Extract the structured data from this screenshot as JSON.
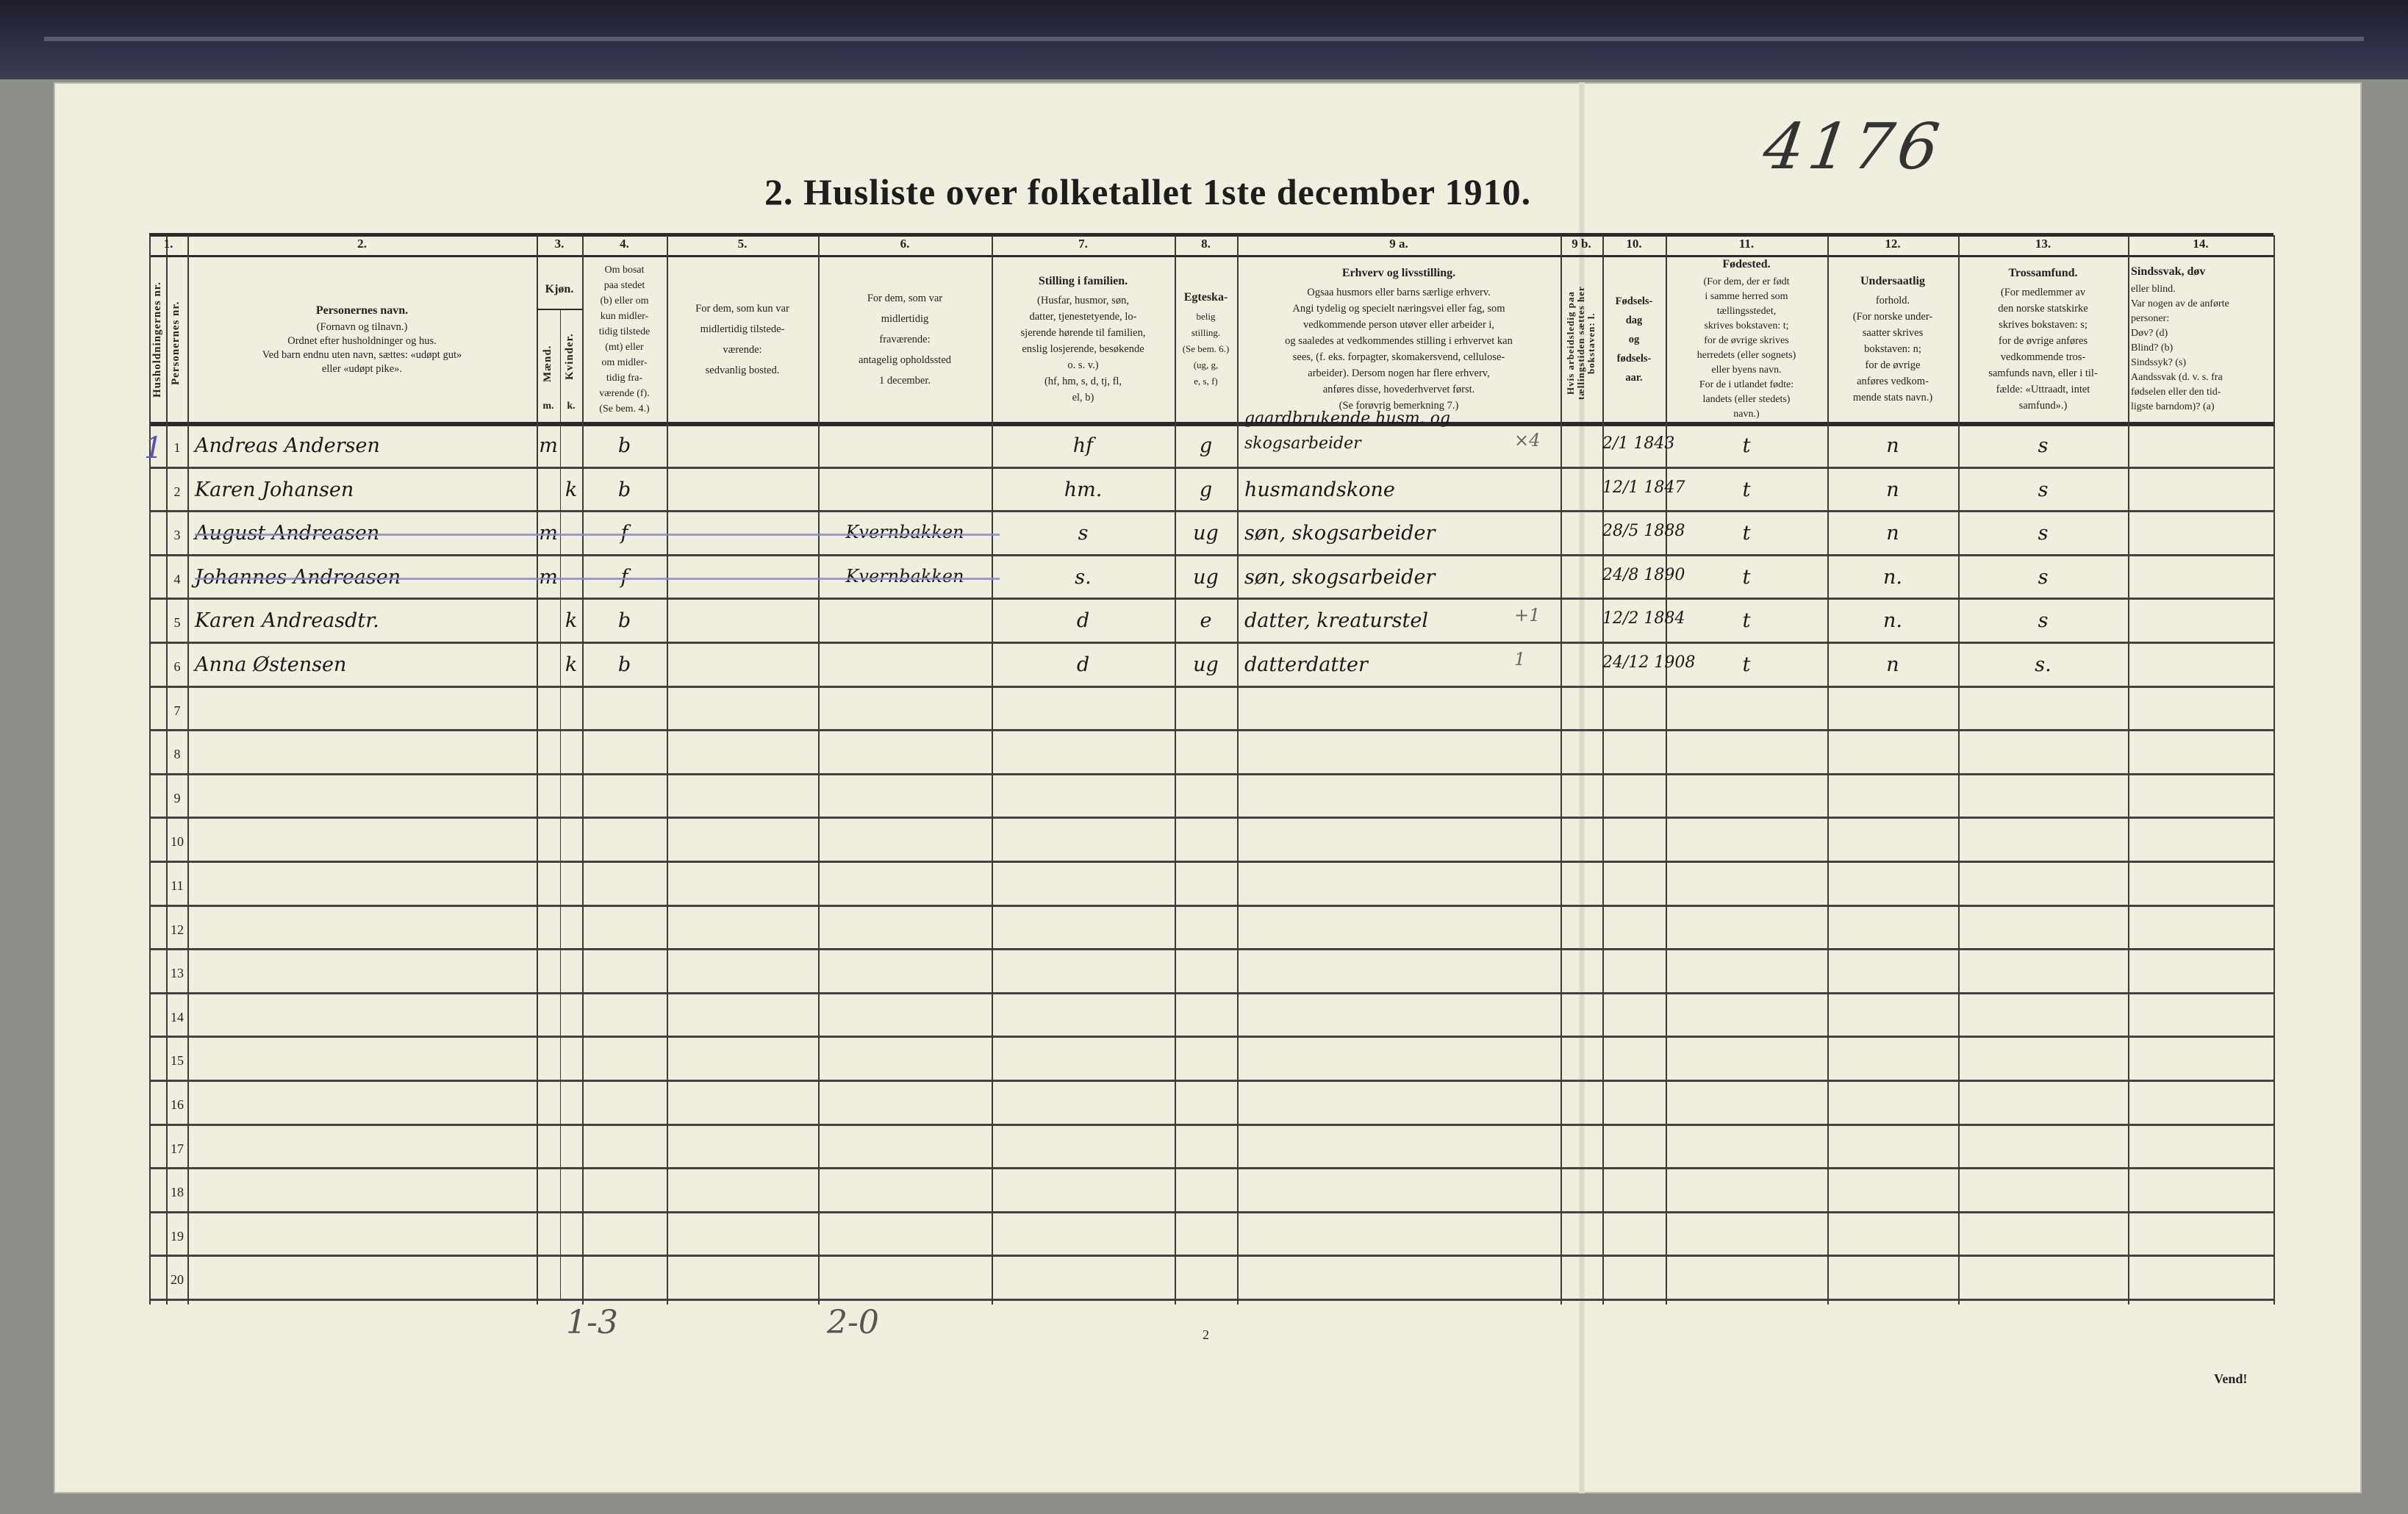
{
  "archive_number": "4176",
  "title": "2.  Husliste over folketallet 1ste december 1910.",
  "header_numbers": [
    "1.",
    "2.",
    "3.",
    "4.",
    "5.",
    "6.",
    "7.",
    "8.",
    "9 a.",
    "9 b.",
    "10.",
    "11.",
    "12.",
    "13.",
    "14."
  ],
  "header": {
    "household_nr": "Husholdningernes nr.",
    "person_nr": "Personernes nr.",
    "name": {
      "title": "Personernes navn.",
      "lines": [
        "(Fornavn og tilnavn.)",
        "Ordnet efter husholdninger og hus.",
        "Ved barn endnu uten navn, sættes: «udøpt gut»",
        "eller «udøpt pike»."
      ]
    },
    "sex": {
      "title": "Kjøn.",
      "male": "Mænd.",
      "female": "Kvinder.",
      "m": "m.",
      "k": "k."
    },
    "residence": {
      "lines": [
        "Om bosat",
        "paa stedet",
        "(b) eller om",
        "kun midler-",
        "tidig tilstede",
        "(mt) eller",
        "om midler-",
        "tidig fra-",
        "værende (f).",
        "(Se bem. 4.)"
      ]
    },
    "temp_present": {
      "lines": [
        "For dem, som kun var",
        "midlertidig tilstede-",
        "værende:",
        "sedvanlig bosted."
      ]
    },
    "temp_absent": {
      "lines": [
        "For dem, som var",
        "midlertidig",
        "fraværende:",
        "antagelig opholdssted",
        "1 december."
      ]
    },
    "family_position": {
      "title": "Stilling i familien.",
      "lines": [
        "(Husfar, husmor, søn,",
        "datter, tjenestetyende, lo-",
        "sjerende hørende til familien,",
        "enslig losjerende, besøkende",
        "o. s. v.)",
        "(hf, hm, s, d, tj, fl,",
        "el, b)"
      ]
    },
    "marital": {
      "title": "Egteska-",
      "lines": [
        "belig",
        "stilling.",
        "(Se bem. 6.)",
        "(ug, g,",
        "e, s, f)"
      ]
    },
    "occupation": {
      "title": "Erhverv og livsstilling.",
      "lines": [
        "Ogsaa husmors eller barns særlige erhverv.",
        "Angi tydelig og specielt næringsvei eller fag, som",
        "vedkommende person utøver eller arbeider i,",
        "og saaledes at vedkommendes stilling i erhvervet kan",
        "sees, (f. eks. forpagter, skomakersvend, cellulose-",
        "arbeider). Dersom nogen har flere erhverv,",
        "anføres disse, hovederhvervet først.",
        "(Se forøvrig bemerkning 7.)"
      ]
    },
    "unemployed": "Hvis arbeidsledig paa tællingstiden sættes her bokstaven: l.",
    "birth_date": {
      "lines": [
        "Fødsels-",
        "dag",
        "og",
        "fødsels-",
        "aar."
      ]
    },
    "birthplace": {
      "title": "Fødested.",
      "lines": [
        "(For dem, der er født",
        "i samme herred som",
        "tællingsstedet,",
        "skrives bokstaven: t;",
        "for de øvrige skrives",
        "herredets (eller sognets)",
        "eller byens navn.",
        "For de i utlandet fødte:",
        "landets (eller stedets)",
        "navn.)"
      ]
    },
    "citizenship": {
      "title": "Undersaatlig",
      "lines": [
        "forhold.",
        "(For norske under-",
        "saatter skrives",
        "bokstaven: n;",
        "for de øvrige",
        "anføres vedkom-",
        "mende stats navn.)"
      ]
    },
    "religion": {
      "title": "Trossamfund.",
      "lines": [
        "(For medlemmer av",
        "den norske statskirke",
        "skrives bokstaven: s;",
        "for de øvrige anføres",
        "vedkommende tros-",
        "samfunds navn, eller i til-",
        "fælde: «Uttraadt, intet",
        "samfund».)"
      ]
    },
    "disability": {
      "title": "Sindssvak, døv",
      "lines": [
        "eller blind.",
        "Var nogen av de anførte",
        "personer:",
        "Døv?  (d)",
        "Blind?  (b)",
        "Sindssyk?  (s)",
        "Aandssvak (d. v. s. fra",
        "fødselen eller den tid-",
        "ligste barndom)? (a)"
      ]
    }
  },
  "row_numbers": [
    "1",
    "2",
    "3",
    "4",
    "5",
    "6",
    "7",
    "8",
    "9",
    "10",
    "11",
    "12",
    "13",
    "14",
    "15",
    "16",
    "17",
    "18",
    "19",
    "20"
  ],
  "household_marks": [
    "1"
  ],
  "rows": [
    {
      "name": "Andreas Andersen",
      "sex_m": "m",
      "sex_k": "",
      "residence": "b",
      "temp_present": "",
      "temp_absent": "",
      "family": "hf",
      "marital": "g",
      "occupation": "gaardbrukende husm. og skogsarbeider",
      "occ_mark": "×4",
      "unemployed": "",
      "birth": "2/1 1843",
      "birthplace": "t",
      "citizenship": "n",
      "religion": "s"
    },
    {
      "name": "Karen Johansen",
      "sex_m": "",
      "sex_k": "k",
      "residence": "b",
      "temp_present": "",
      "temp_absent": "",
      "family": "hm.",
      "marital": "g",
      "occupation": "husmandskone",
      "occ_mark": "",
      "unemployed": "",
      "birth": "12/1 1847",
      "birthplace": "t",
      "citizenship": "n",
      "religion": "s"
    },
    {
      "name": "August Andreasen",
      "sex_m": "m",
      "sex_k": "",
      "residence": "f",
      "temp_present": "",
      "temp_absent": "Kvernbakken",
      "family": "s",
      "marital": "ug",
      "occupation": "søn, skogsarbeider",
      "occ_mark": "",
      "unemployed": "",
      "birth": "28/5 1888",
      "birthplace": "t",
      "citizenship": "n",
      "religion": "s"
    },
    {
      "name": "Johannes Andreasen",
      "sex_m": "m",
      "sex_k": "",
      "residence": "f",
      "temp_present": "",
      "temp_absent": "Kvernbakken",
      "family": "s.",
      "marital": "ug",
      "occupation": "søn, skogsarbeider",
      "occ_mark": "",
      "unemployed": "",
      "birth": "24/8 1890",
      "birthplace": "t",
      "citizenship": "n.",
      "religion": "s"
    },
    {
      "name": "Karen Andreasdtr.",
      "sex_m": "",
      "sex_k": "k",
      "residence": "b",
      "temp_present": "",
      "temp_absent": "",
      "family": "d",
      "marital": "e",
      "occupation": "datter, kreaturstel",
      "occ_mark": "+1",
      "unemployed": "",
      "birth": "12/2 1884",
      "birthplace": "t",
      "citizenship": "n.",
      "religion": "s"
    },
    {
      "name": "Anna Østensen",
      "sex_m": "",
      "sex_k": "k",
      "residence": "b",
      "temp_present": "",
      "temp_absent": "",
      "family": "d",
      "marital": "ug",
      "occupation": "datterdatter",
      "occ_mark": "1",
      "unemployed": "",
      "birth": "24/12 1908",
      "birthplace": "t",
      "citizenship": "n",
      "religion": "s."
    }
  ],
  "struck_rows": [
    3,
    4
  ],
  "footer": {
    "pencil_left": "1-3",
    "pencil_mid": "2-0",
    "page_number": "2",
    "vend": "Vend!"
  },
  "colors": {
    "paper": "#efeedf",
    "ink": "#1a1a1a",
    "strike": "#8b84c8",
    "band": "#2a2a3e"
  }
}
